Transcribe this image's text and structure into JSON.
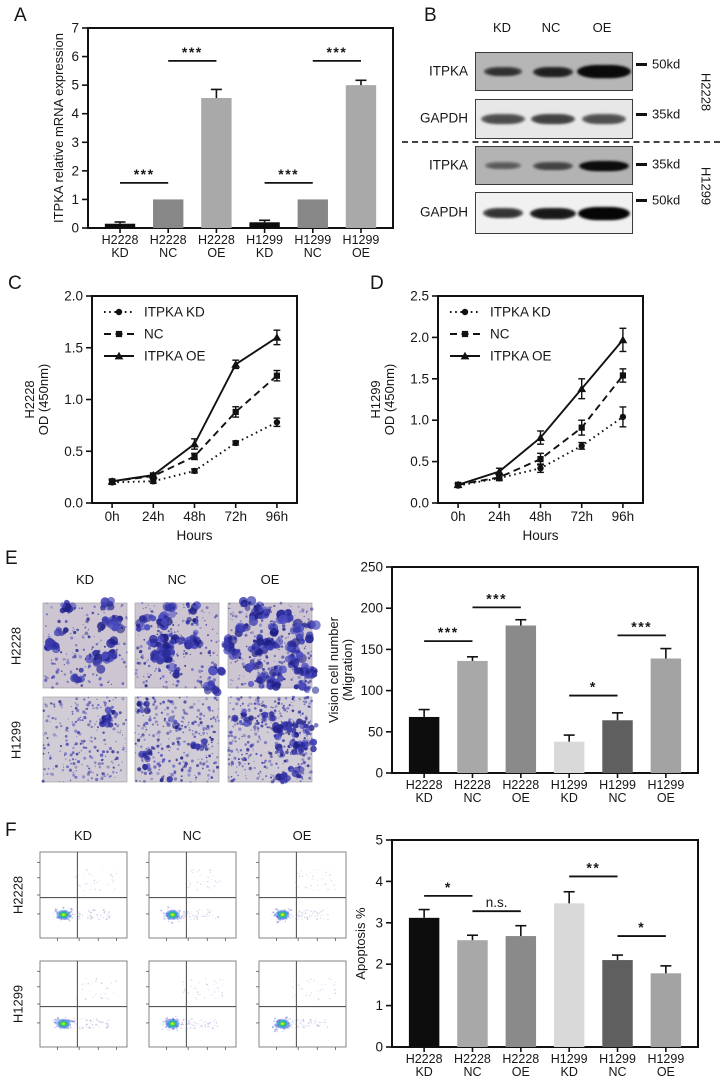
{
  "figure": {
    "panel_a": {
      "label": "A"
    },
    "panel_b": {
      "label": "B",
      "col_headers": [
        "KD",
        "NC",
        "OE"
      ],
      "groups": [
        {
          "cell_line": "H2228",
          "rows": [
            {
              "protein": "ITPKA",
              "marker": "50kd"
            },
            {
              "protein": "GAPDH",
              "marker": "35kd"
            }
          ]
        },
        {
          "cell_line": "H1299",
          "rows": [
            {
              "protein": "ITPKA",
              "marker": "35kd"
            },
            {
              "protein": "GAPDH",
              "marker": "50kd"
            }
          ]
        }
      ]
    },
    "panel_c": {
      "label": "C"
    },
    "panel_d": {
      "label": "D"
    },
    "panel_e": {
      "label": "E",
      "col_headers": [
        "KD",
        "NC",
        "OE"
      ],
      "row_labels": [
        "H2228",
        "H1299"
      ]
    },
    "panel_f": {
      "label": "F",
      "col_headers": [
        "KD",
        "NC",
        "OE"
      ],
      "row_labels": [
        "H2228",
        "H1299"
      ]
    }
  },
  "chart_data": [
    {
      "id": "A",
      "type": "bar",
      "ylabel": "ITPKA relative mRNA expression",
      "categories": [
        "H2228 KD",
        "H2228 NC",
        "H2228 OE",
        "H1299 KD",
        "H1299 NC",
        "H1299 OE"
      ],
      "values": [
        0.15,
        1.0,
        4.55,
        0.2,
        1.0,
        5.0
      ],
      "errors": [
        0.06,
        0,
        0.3,
        0.07,
        0,
        0.17
      ],
      "bar_colors": [
        "#0d0d0d",
        "#878787",
        "#a9a9a9",
        "#0d0d0d",
        "#878787",
        "#a9a9a9"
      ],
      "ylim": [
        0,
        7
      ],
      "yticks": [
        0,
        1,
        2,
        3,
        4,
        5,
        6,
        7
      ],
      "significance": [
        {
          "between": [
            0,
            1
          ],
          "label": "***",
          "y": 1.58
        },
        {
          "between": [
            1,
            2
          ],
          "label": "***",
          "y": 5.85
        },
        {
          "between": [
            3,
            4
          ],
          "label": "***",
          "y": 1.58
        },
        {
          "between": [
            4,
            5
          ],
          "label": "***",
          "y": 5.85
        }
      ]
    },
    {
      "id": "C",
      "type": "line",
      "ylabel_lines": [
        "H2228",
        "OD (450nm)"
      ],
      "xlabel": "Hours",
      "x": [
        "0h",
        "24h",
        "48h",
        "72h",
        "96h"
      ],
      "series": [
        {
          "name": "ITPKA KD",
          "marker": "circle",
          "line": "dotted",
          "values": [
            0.2,
            0.21,
            0.31,
            0.58,
            0.78
          ],
          "errors": [
            0.02,
            0.02,
            0.02,
            0.02,
            0.04
          ]
        },
        {
          "name": "NC",
          "marker": "square",
          "line": "dashed",
          "values": [
            0.21,
            0.26,
            0.45,
            0.88,
            1.23
          ],
          "errors": [
            0.02,
            0.02,
            0.03,
            0.05,
            0.05
          ]
        },
        {
          "name": "ITPKA OE",
          "marker": "triangle",
          "line": "solid",
          "values": [
            0.21,
            0.27,
            0.57,
            1.34,
            1.6
          ],
          "errors": [
            0.02,
            0.02,
            0.05,
            0.04,
            0.07
          ]
        }
      ],
      "ylim": [
        0,
        2.0
      ],
      "yticks": [
        0.0,
        0.5,
        1.0,
        1.5,
        2.0
      ],
      "legend_position": "top-left",
      "grid": false
    },
    {
      "id": "D",
      "type": "line",
      "ylabel_lines": [
        "H1299",
        "OD (450nm)"
      ],
      "xlabel": "Hours",
      "x": [
        "0h",
        "24h",
        "48h",
        "72h",
        "96h"
      ],
      "series": [
        {
          "name": "ITPKA KD",
          "marker": "circle",
          "line": "dotted",
          "values": [
            0.21,
            0.3,
            0.42,
            0.69,
            1.04
          ],
          "errors": [
            0.02,
            0.03,
            0.05,
            0.04,
            0.12
          ]
        },
        {
          "name": "NC",
          "marker": "square",
          "line": "dashed",
          "values": [
            0.22,
            0.31,
            0.53,
            0.91,
            1.54
          ],
          "errors": [
            0.02,
            0.03,
            0.07,
            0.09,
            0.08
          ]
        },
        {
          "name": "ITPKA OE",
          "marker": "triangle",
          "line": "solid",
          "values": [
            0.22,
            0.38,
            0.79,
            1.38,
            1.97
          ],
          "errors": [
            0.02,
            0.04,
            0.08,
            0.12,
            0.14
          ]
        }
      ],
      "ylim": [
        0,
        2.5
      ],
      "yticks": [
        0.0,
        0.5,
        1.0,
        1.5,
        2.0,
        2.5
      ],
      "legend_position": "top-left",
      "grid": false
    },
    {
      "id": "E",
      "type": "bar",
      "ylabel_lines": [
        "Vision cell number",
        "(Migration)"
      ],
      "categories": [
        "H2228 KD",
        "H2228 NC",
        "H2228 OE",
        "H1299 KD",
        "H1299 NC",
        "H1299 OE"
      ],
      "values": [
        68,
        136,
        179,
        38,
        64,
        139
      ],
      "errors": [
        9,
        5,
        7,
        8,
        9,
        12
      ],
      "bar_colors": [
        "#0d0d0d",
        "#a8a8a8",
        "#8a8a8a",
        "#d9d9d9",
        "#5f5f5f",
        "#a3a3a3"
      ],
      "ylim": [
        0,
        250
      ],
      "yticks": [
        0,
        50,
        100,
        150,
        200,
        250
      ],
      "significance": [
        {
          "between": [
            0,
            1
          ],
          "label": "***",
          "y": 160
        },
        {
          "between": [
            1,
            2
          ],
          "label": "***",
          "y": 201
        },
        {
          "between": [
            3,
            4
          ],
          "label": "*",
          "y": 94
        },
        {
          "between": [
            4,
            5
          ],
          "label": "***",
          "y": 167
        }
      ]
    },
    {
      "id": "F",
      "type": "bar",
      "ylabel_lines": [
        "Apoptosis %"
      ],
      "categories": [
        "H2228 KD",
        "H2228 NC",
        "H2228 OE",
        "H1299 KD",
        "H1299 NC",
        "H1299 OE"
      ],
      "values": [
        3.12,
        2.58,
        2.68,
        3.47,
        2.1,
        1.78
      ],
      "errors": [
        0.2,
        0.12,
        0.25,
        0.28,
        0.12,
        0.18
      ],
      "bar_colors": [
        "#0d0d0d",
        "#a8a8a8",
        "#8a8a8a",
        "#d9d9d9",
        "#5f5f5f",
        "#a3a3a3"
      ],
      "ylim": [
        0,
        5
      ],
      "yticks": [
        0,
        1,
        2,
        3,
        4,
        5
      ],
      "significance": [
        {
          "between": [
            0,
            1
          ],
          "label": "*",
          "y": 3.65
        },
        {
          "between": [
            1,
            2
          ],
          "label": "n.s.",
          "y": 3.28
        },
        {
          "between": [
            3,
            4
          ],
          "label": "**",
          "y": 4.12
        },
        {
          "between": [
            4,
            5
          ],
          "label": "*",
          "y": 2.68
        }
      ]
    }
  ]
}
